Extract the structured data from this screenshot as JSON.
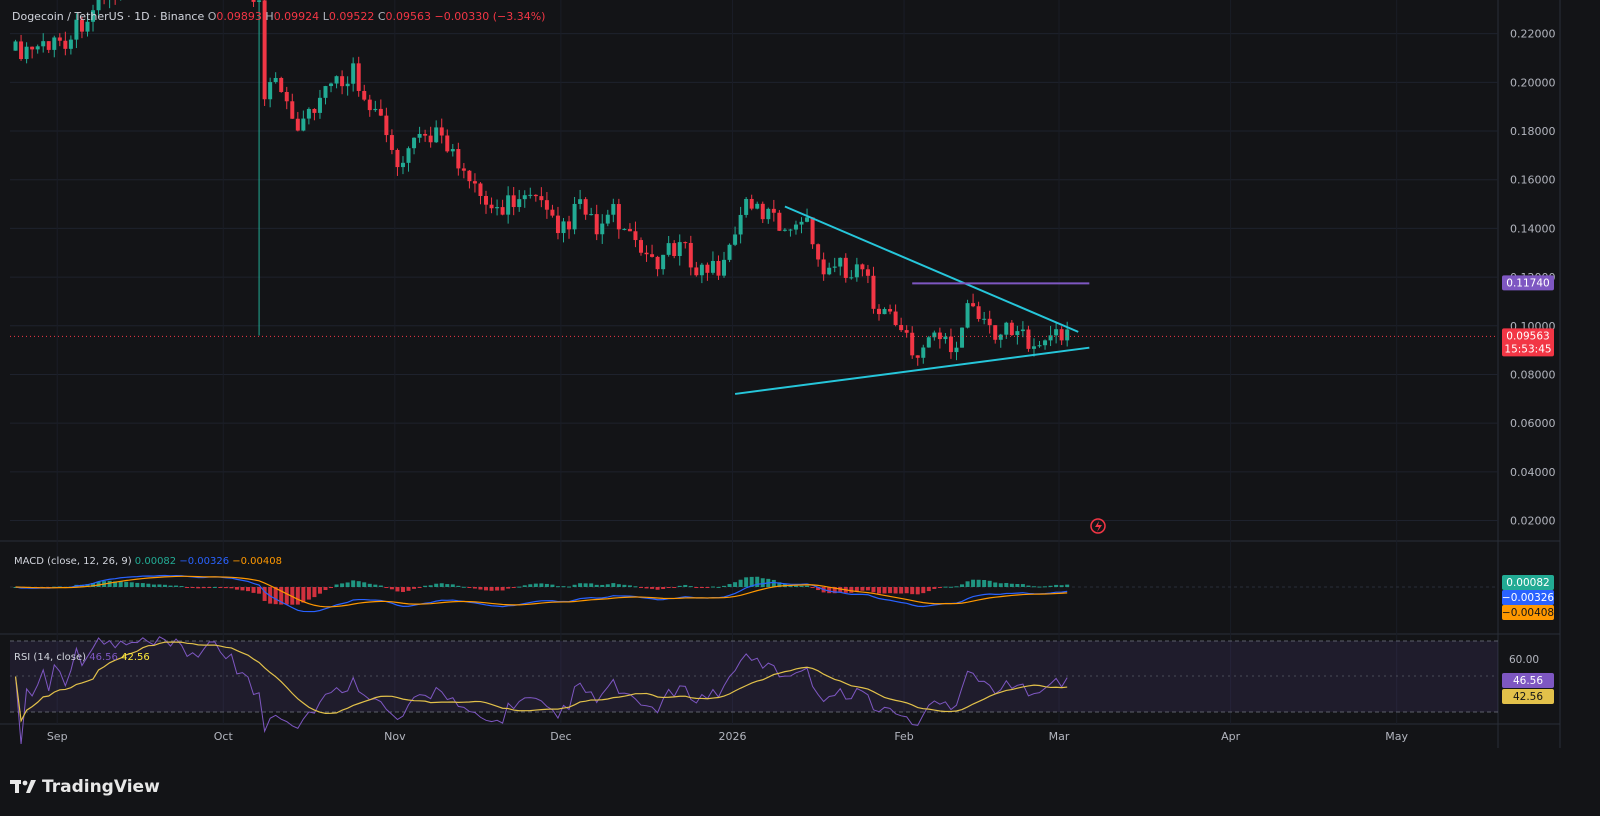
{
  "legend": {
    "symbol": "Dogecoin / TetherUS · 1D · Binance",
    "o_label": "O",
    "o": "0.09893",
    "h_label": "H",
    "h": "0.09924",
    "l_label": "L",
    "l": "0.09522",
    "c_label": "C",
    "c": "0.09563",
    "change": "−0.00330 (−3.34%)"
  },
  "macd_label": {
    "title": "MACD (close, 12, 26, 9)",
    "v1": "0.00082",
    "v2": "−0.00326",
    "v3": "−0.00408"
  },
  "rsi_label": {
    "title": "RSI (14, close)",
    "v1": "46.56",
    "v2": "42.56"
  },
  "price_tags": {
    "resistance": "0.11740",
    "last": "0.09563",
    "countdown": "15:53:45",
    "macd_hist": "0.00082",
    "macd_line": "−0.00326",
    "macd_signal": "−0.00408",
    "rsi": "46.56",
    "rsi_ma": "42.56",
    "rsi_60": "60.00"
  },
  "footer": {
    "brand": "TradingView"
  },
  "colors": {
    "up": "#22ab94",
    "down": "#f23645",
    "trendline": "#26c6da",
    "resistance": "#7e57c2",
    "macd": "#2962ff",
    "signal": "#ff9800",
    "rsi": "#7e57c2",
    "rsi_ma": "#e2c14a",
    "background": "#131417"
  },
  "chart_data": {
    "type": "candlestick",
    "title": "Dogecoin / TetherUS · 1D · Binance",
    "y_ticks": [
      "0.22000",
      "0.20000",
      "0.18000",
      "0.16000",
      "0.14000",
      "0.12000",
      "0.10000",
      "0.08000",
      "0.06000",
      "0.04000",
      "0.02000"
    ],
    "x_ticks": [
      "Sep",
      "Oct",
      "Nov",
      "Dec",
      "2026",
      "Feb",
      "Mar",
      "Apr",
      "May"
    ],
    "ylim": [
      0.012,
      0.233
    ],
    "price_path": [
      {
        "date": "2025-08-27",
        "price": 0.213
      },
      {
        "date": "2025-09-05",
        "price": 0.218
      },
      {
        "date": "2025-09-12",
        "price": 0.235
      },
      {
        "date": "2025-10-05",
        "price": 0.25
      },
      {
        "date": "2025-10-10",
        "price": 0.231
      },
      {
        "date": "2025-10-11",
        "price": 0.195
      },
      {
        "date": "2025-10-13",
        "price": 0.205
      },
      {
        "date": "2025-10-17",
        "price": 0.183
      },
      {
        "date": "2025-10-22",
        "price": 0.196
      },
      {
        "date": "2025-10-27",
        "price": 0.205
      },
      {
        "date": "2025-11-01",
        "price": 0.184
      },
      {
        "date": "2025-11-04",
        "price": 0.164
      },
      {
        "date": "2025-11-08",
        "price": 0.176
      },
      {
        "date": "2025-11-12",
        "price": 0.181
      },
      {
        "date": "2025-11-16",
        "price": 0.16
      },
      {
        "date": "2025-11-21",
        "price": 0.147
      },
      {
        "date": "2025-11-25",
        "price": 0.152
      },
      {
        "date": "2025-11-29",
        "price": 0.151
      },
      {
        "date": "2025-12-03",
        "price": 0.138
      },
      {
        "date": "2025-12-07",
        "price": 0.149
      },
      {
        "date": "2025-12-10",
        "price": 0.139
      },
      {
        "date": "2025-12-13",
        "price": 0.146
      },
      {
        "date": "2025-12-17",
        "price": 0.131
      },
      {
        "date": "2025-12-21",
        "price": 0.127
      },
      {
        "date": "2025-12-25",
        "price": 0.132
      },
      {
        "date": "2025-12-29",
        "price": 0.123
      },
      {
        "date": "2026-01-02",
        "price": 0.125
      },
      {
        "date": "2026-01-05",
        "price": 0.148
      },
      {
        "date": "2026-01-09",
        "price": 0.147
      },
      {
        "date": "2026-01-13",
        "price": 0.14
      },
      {
        "date": "2026-01-16",
        "price": 0.146
      },
      {
        "date": "2026-01-20",
        "price": 0.125
      },
      {
        "date": "2026-01-24",
        "price": 0.124
      },
      {
        "date": "2026-01-27",
        "price": 0.123
      },
      {
        "date": "2026-01-30",
        "price": 0.105
      },
      {
        "date": "2026-02-02",
        "price": 0.104
      },
      {
        "date": "2026-02-05",
        "price": 0.088
      },
      {
        "date": "2026-02-09",
        "price": 0.095
      },
      {
        "date": "2026-02-13",
        "price": 0.093
      },
      {
        "date": "2026-02-15",
        "price": 0.112
      },
      {
        "date": "2026-02-18",
        "price": 0.1
      },
      {
        "date": "2026-02-22",
        "price": 0.097
      },
      {
        "date": "2026-02-26",
        "price": 0.095
      },
      {
        "date": "2026-03-01",
        "price": 0.096
      },
      {
        "date": "2026-03-04",
        "price": 0.095
      },
      {
        "date": "2026-03-05",
        "price": 0.0956
      }
    ],
    "annotations": {
      "upper_trendline": [
        {
          "date": "2026-01-13",
          "price": 0.149
        },
        {
          "date": "2026-03-07",
          "price": 0.0975
        }
      ],
      "lower_trendline": [
        {
          "date": "2026-01-04",
          "price": 0.072
        },
        {
          "date": "2026-03-09",
          "price": 0.091
        }
      ],
      "resistance_line": {
        "from": "2026-02-05",
        "to": "2026-03-09",
        "price": 0.1174
      }
    },
    "macd": {
      "params": "12, 26, 9",
      "last": {
        "histogram": 0.00082,
        "macd": -0.00326,
        "signal": -0.00408
      }
    },
    "rsi": {
      "params": "14",
      "last": {
        "rsi": 46.56,
        "ma": 42.56
      },
      "band": [
        30,
        70
      ]
    }
  }
}
